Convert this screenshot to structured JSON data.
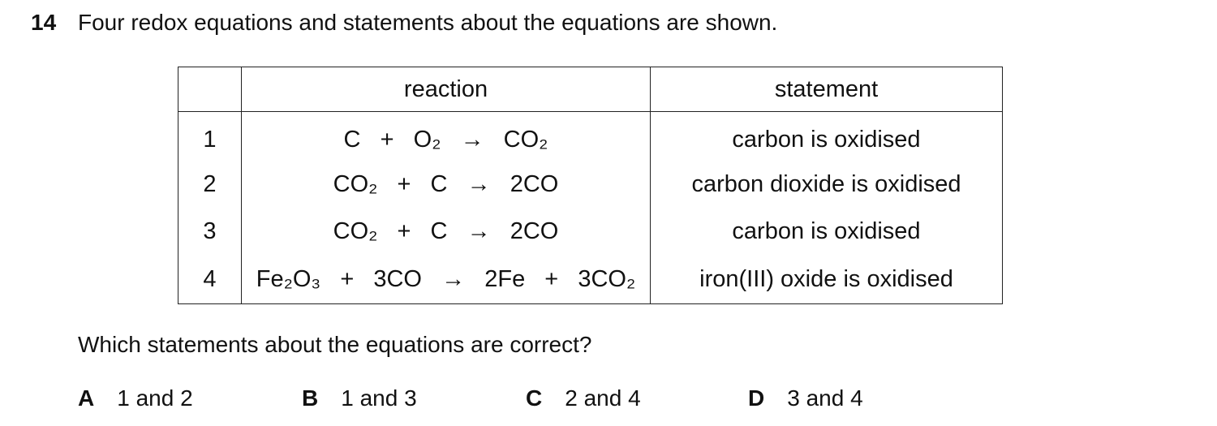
{
  "question": {
    "number": "14",
    "text": "Four redox equations and statements about the equations are shown.",
    "table": {
      "headers": [
        "",
        "reaction",
        "statement"
      ],
      "rows": [
        {
          "num": "1",
          "reaction": "C  +  O₂  →  CO₂",
          "statement": "carbon is oxidised"
        },
        {
          "num": "2",
          "reaction": "CO₂  +  C  →  2CO",
          "statement": "carbon dioxide is oxidised"
        },
        {
          "num": "3",
          "reaction": "CO₂  +  C  →  2CO",
          "statement": "carbon is oxidised"
        },
        {
          "num": "4",
          "reaction": "Fe₂O₃  +  3CO  →  2Fe  +  3CO₂",
          "statement": "iron(III) oxide is oxidised"
        }
      ]
    },
    "stem": "Which statements about the equations are correct?",
    "options": [
      {
        "letter": "A",
        "text": "1 and 2"
      },
      {
        "letter": "B",
        "text": "1 and 3"
      },
      {
        "letter": "C",
        "text": "2 and 4"
      },
      {
        "letter": "D",
        "text": "3 and 4"
      }
    ]
  }
}
